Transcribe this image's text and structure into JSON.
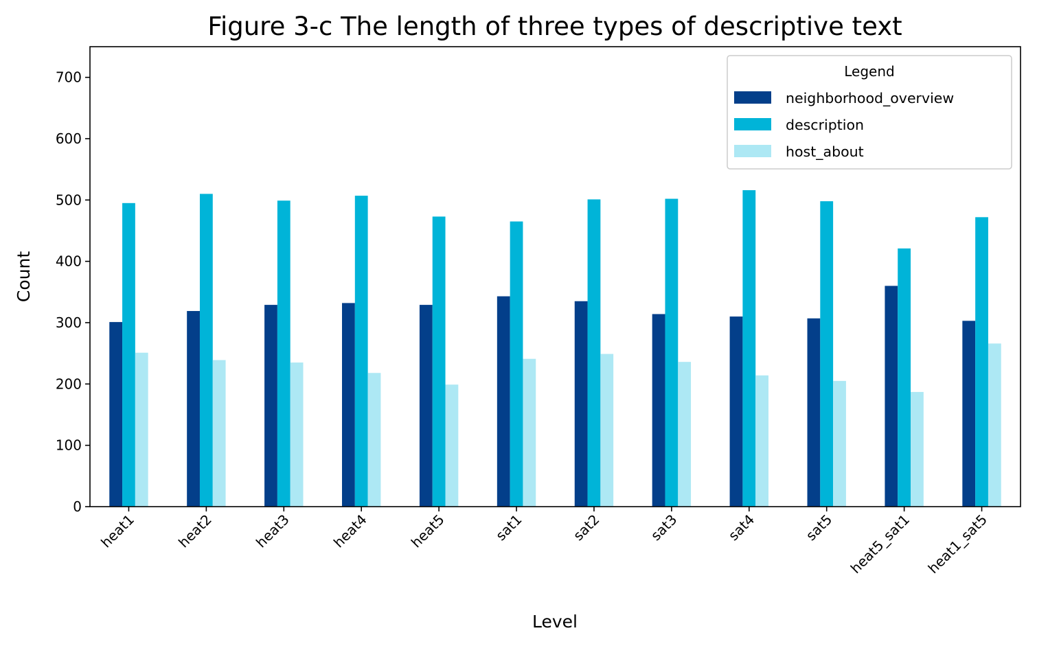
{
  "chart_data": {
    "type": "bar",
    "title": "Figure 3-c  The length of three types of descriptive text",
    "xlabel": "Level",
    "ylabel": "Count",
    "ylim": [
      0,
      750
    ],
    "yticks": [
      0,
      100,
      200,
      300,
      400,
      500,
      600,
      700
    ],
    "grid": false,
    "legend_position": "top-right",
    "legend_title": "Legend",
    "categories": [
      "heat1",
      "heat2",
      "heat3",
      "heat4",
      "heat5",
      "sat1",
      "sat2",
      "sat3",
      "sat4",
      "sat5",
      "heat5_sat1",
      "heat1_sat5"
    ],
    "series": [
      {
        "name": "neighborhood_overview",
        "color": "#033f8a",
        "values": [
          301,
          319,
          329,
          332,
          329,
          343,
          335,
          314,
          310,
          307,
          360,
          303
        ]
      },
      {
        "name": "description",
        "color": "#00b4d8",
        "values": [
          495,
          510,
          499,
          507,
          473,
          465,
          501,
          502,
          516,
          498,
          421,
          472
        ]
      },
      {
        "name": "host_about",
        "color": "#ade8f4",
        "values": [
          251,
          239,
          235,
          218,
          199,
          241,
          249,
          236,
          214,
          205,
          187,
          266
        ]
      }
    ]
  }
}
